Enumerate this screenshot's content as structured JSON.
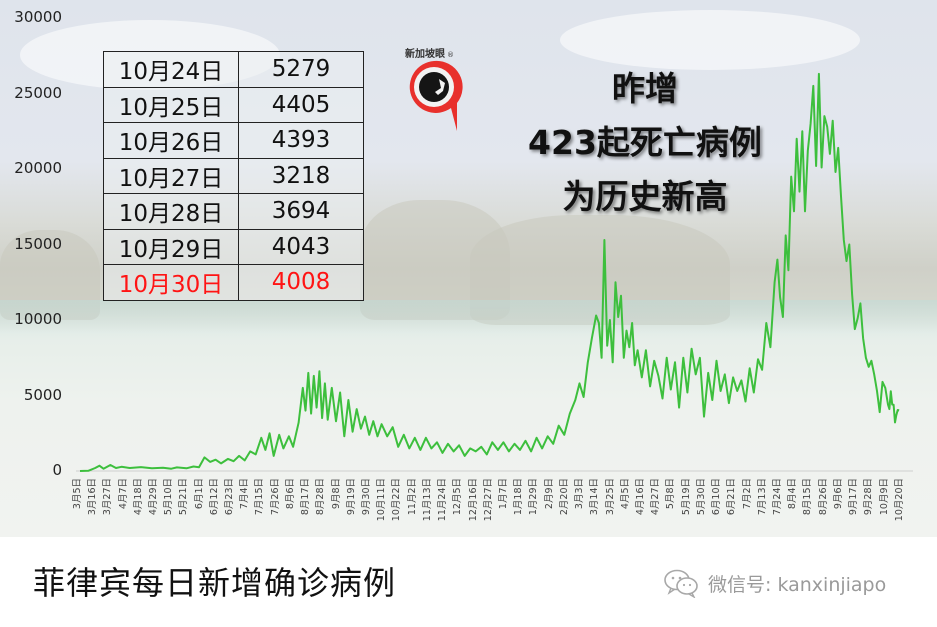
{
  "chart_data": {
    "type": "line",
    "title": "菲律宾每日新增确诊病例",
    "xlabel": "",
    "ylabel": "",
    "ylim": [
      0,
      30000
    ],
    "yticks": [
      0,
      5000,
      10000,
      15000,
      20000,
      25000,
      30000
    ],
    "grid": false,
    "legend": "none",
    "series_color": "#3dbf3d",
    "x_tick_labels": [
      "3月5日",
      "3月16日",
      "3月27日",
      "4月7日",
      "4月18日",
      "4月29日",
      "5月10日",
      "5月21日",
      "6月1日",
      "6月12日",
      "6月23日",
      "7月4日",
      "7月15日",
      "7月26日",
      "8月6日",
      "8月17日",
      "8月28日",
      "9月8日",
      "9月19日",
      "9月30日",
      "10月11日",
      "10月22日",
      "11月2日",
      "11月13日",
      "11月24日",
      "12月5日",
      "12月16日",
      "12月27日",
      "1月7日",
      "1月18日",
      "1月29日",
      "2月9日",
      "2月20日",
      "3月3日",
      "3月14日",
      "3月25日",
      "4月5日",
      "4月16日",
      "4月27日",
      "5月8日",
      "5月19日",
      "5月30日",
      "6月10日",
      "6月21日",
      "7月2日",
      "7月13日",
      "7月24日",
      "8月4日",
      "8月15日",
      "8月26日",
      "9月6日",
      "9月17日",
      "9月28日",
      "10月9日",
      "10月20日"
    ],
    "series": [
      {
        "name": "每日新增确诊病例",
        "x_index_per_tick": 11,
        "points": [
          [
            0,
            0
          ],
          [
            6,
            10
          ],
          [
            11,
            200
          ],
          [
            14,
            350
          ],
          [
            17,
            150
          ],
          [
            22,
            400
          ],
          [
            26,
            200
          ],
          [
            30,
            280
          ],
          [
            36,
            200
          ],
          [
            44,
            260
          ],
          [
            52,
            180
          ],
          [
            60,
            220
          ],
          [
            66,
            150
          ],
          [
            70,
            240
          ],
          [
            77,
            180
          ],
          [
            82,
            300
          ],
          [
            86,
            250
          ],
          [
            90,
            900
          ],
          [
            94,
            600
          ],
          [
            98,
            750
          ],
          [
            102,
            500
          ],
          [
            107,
            800
          ],
          [
            111,
            650
          ],
          [
            115,
            1000
          ],
          [
            119,
            700
          ],
          [
            123,
            1300
          ],
          [
            127,
            1100
          ],
          [
            131,
            2200
          ],
          [
            134,
            1400
          ],
          [
            137,
            2500
          ],
          [
            140,
            1000
          ],
          [
            144,
            2400
          ],
          [
            147,
            1500
          ],
          [
            151,
            2300
          ],
          [
            154,
            1600
          ],
          [
            158,
            3200
          ],
          [
            161,
            5500
          ],
          [
            163,
            4000
          ],
          [
            165,
            6500
          ],
          [
            167,
            3800
          ],
          [
            169,
            6300
          ],
          [
            171,
            4200
          ],
          [
            173,
            6600
          ],
          [
            175,
            3500
          ],
          [
            177,
            5800
          ],
          [
            179,
            3400
          ],
          [
            182,
            5500
          ],
          [
            185,
            3300
          ],
          [
            188,
            5200
          ],
          [
            191,
            2300
          ],
          [
            194,
            4700
          ],
          [
            197,
            2600
          ],
          [
            200,
            4100
          ],
          [
            203,
            2800
          ],
          [
            206,
            3600
          ],
          [
            209,
            2400
          ],
          [
            212,
            3300
          ],
          [
            215,
            2300
          ],
          [
            218,
            3100
          ],
          [
            222,
            2300
          ],
          [
            226,
            2900
          ],
          [
            230,
            1600
          ],
          [
            234,
            2400
          ],
          [
            238,
            1500
          ],
          [
            242,
            2200
          ],
          [
            246,
            1400
          ],
          [
            250,
            2200
          ],
          [
            254,
            1500
          ],
          [
            258,
            1900
          ],
          [
            262,
            1200
          ],
          [
            266,
            1800
          ],
          [
            270,
            1300
          ],
          [
            274,
            1700
          ],
          [
            278,
            1000
          ],
          [
            282,
            1500
          ],
          [
            286,
            1300
          ],
          [
            290,
            1600
          ],
          [
            294,
            1100
          ],
          [
            298,
            1900
          ],
          [
            302,
            1400
          ],
          [
            306,
            1900
          ],
          [
            310,
            1300
          ],
          [
            314,
            1800
          ],
          [
            318,
            1400
          ],
          [
            322,
            2000
          ],
          [
            326,
            1300
          ],
          [
            330,
            2200
          ],
          [
            334,
            1500
          ],
          [
            338,
            2300
          ],
          [
            342,
            1800
          ],
          [
            346,
            3000
          ],
          [
            350,
            2400
          ],
          [
            354,
            3800
          ],
          [
            358,
            4700
          ],
          [
            361,
            5800
          ],
          [
            364,
            4900
          ],
          [
            367,
            7200
          ],
          [
            370,
            8800
          ],
          [
            373,
            10300
          ],
          [
            375,
            9800
          ],
          [
            377,
            7500
          ],
          [
            379,
            15300
          ],
          [
            381,
            8300
          ],
          [
            383,
            10000
          ],
          [
            385,
            7200
          ],
          [
            387,
            12500
          ],
          [
            389,
            10200
          ],
          [
            391,
            11600
          ],
          [
            393,
            7500
          ],
          [
            395,
            9300
          ],
          [
            397,
            8200
          ],
          [
            399,
            9800
          ],
          [
            401,
            7000
          ],
          [
            403,
            8000
          ],
          [
            406,
            6200
          ],
          [
            409,
            8000
          ],
          [
            412,
            5600
          ],
          [
            415,
            7300
          ],
          [
            418,
            6300
          ],
          [
            421,
            4800
          ],
          [
            424,
            7500
          ],
          [
            427,
            5400
          ],
          [
            430,
            7200
          ],
          [
            433,
            4200
          ],
          [
            436,
            7500
          ],
          [
            439,
            5200
          ],
          [
            442,
            8100
          ],
          [
            445,
            6400
          ],
          [
            448,
            7500
          ],
          [
            451,
            3600
          ],
          [
            454,
            6500
          ],
          [
            457,
            4700
          ],
          [
            460,
            7300
          ],
          [
            463,
            5300
          ],
          [
            466,
            6400
          ],
          [
            469,
            4500
          ],
          [
            472,
            6200
          ],
          [
            475,
            5300
          ],
          [
            478,
            6000
          ],
          [
            481,
            4600
          ],
          [
            484,
            6800
          ],
          [
            487,
            5200
          ],
          [
            490,
            7400
          ],
          [
            493,
            6700
          ],
          [
            496,
            9800
          ],
          [
            499,
            8200
          ],
          [
            502,
            12500
          ],
          [
            504,
            14000
          ],
          [
            506,
            11500
          ],
          [
            508,
            10200
          ],
          [
            510,
            15600
          ],
          [
            512,
            13300
          ],
          [
            514,
            19500
          ],
          [
            516,
            17200
          ],
          [
            518,
            22000
          ],
          [
            520,
            18500
          ],
          [
            522,
            22500
          ],
          [
            524,
            17200
          ],
          [
            526,
            21200
          ],
          [
            528,
            23000
          ],
          [
            530,
            25500
          ],
          [
            532,
            20200
          ],
          [
            534,
            26300
          ],
          [
            536,
            20100
          ],
          [
            538,
            23500
          ],
          [
            540,
            22800
          ],
          [
            542,
            21000
          ],
          [
            544,
            23200
          ],
          [
            546,
            19800
          ],
          [
            548,
            21400
          ],
          [
            550,
            18200
          ],
          [
            552,
            15300
          ],
          [
            554,
            13900
          ],
          [
            556,
            15000
          ],
          [
            558,
            11700
          ],
          [
            560,
            9400
          ],
          [
            562,
            10100
          ],
          [
            564,
            11100
          ],
          [
            566,
            8800
          ],
          [
            568,
            7500
          ],
          [
            570,
            6900
          ],
          [
            572,
            7300
          ],
          [
            574,
            6400
          ],
          [
            576,
            5300
          ],
          [
            578,
            3900
          ],
          [
            580,
            5900
          ],
          [
            582,
            5500
          ],
          [
            584,
            4400
          ],
          [
            585,
            4100
          ],
          [
            586,
            5279
          ],
          [
            587,
            4405
          ],
          [
            588,
            4393
          ],
          [
            589,
            3218
          ],
          [
            590,
            3694
          ],
          [
            591,
            4043
          ],
          [
            592,
            4008
          ]
        ]
      }
    ],
    "table": {
      "rows": [
        {
          "date": "10月24日",
          "value": "5279",
          "highlight": false
        },
        {
          "date": "10月25日",
          "value": "4405",
          "highlight": false
        },
        {
          "date": "10月26日",
          "value": "4393",
          "highlight": false
        },
        {
          "date": "10月27日",
          "value": "3218",
          "highlight": false
        },
        {
          "date": "10月28日",
          "value": "3694",
          "highlight": false
        },
        {
          "date": "10月29日",
          "value": "4043",
          "highlight": false
        },
        {
          "date": "10月30日",
          "value": "4008",
          "highlight": true
        }
      ],
      "highlight_color": "#ff1414"
    },
    "annotations": [
      "昨增",
      "423起死亡病例",
      "为历史新高"
    ]
  },
  "headline": {
    "line1": "昨增",
    "line2": "423起死亡病例",
    "line3": "为历史新高"
  },
  "logo": {
    "text": "新加坡眼",
    "registered_mark": "®",
    "ring_color": "#e8302c"
  },
  "caption": {
    "title": "菲律宾每日新增确诊病例"
  },
  "watermark": {
    "icon": "wechat-icon",
    "text": "微信号: kanxinjiapo"
  }
}
